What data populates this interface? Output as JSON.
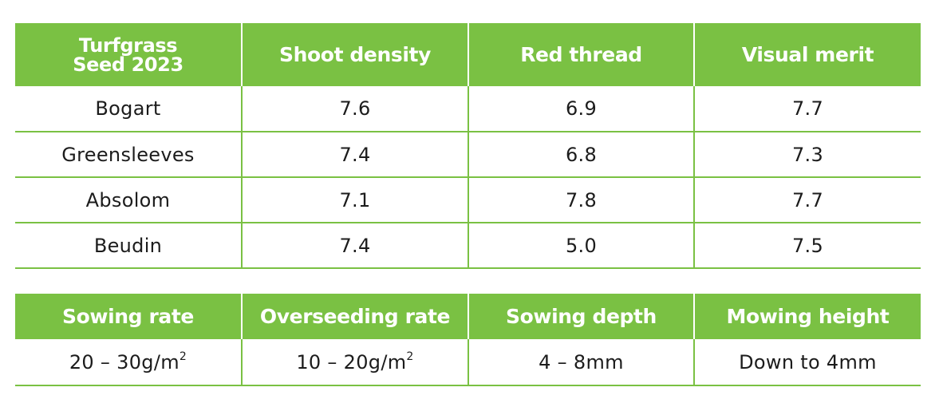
{
  "trial_table": {
    "headers": {
      "variety_line1": "Turfgrass",
      "variety_line2": "Seed 2023",
      "shoot_density": "Shoot density",
      "red_thread": "Red thread",
      "visual_merit": "Visual merit"
    },
    "rows": [
      {
        "variety": "Bogart",
        "shoot_density": "7.6",
        "red_thread": "6.9",
        "visual_merit": "7.7"
      },
      {
        "variety": "Greensleeves",
        "shoot_density": "7.4",
        "red_thread": "6.8",
        "visual_merit": "7.3"
      },
      {
        "variety": "Absolom",
        "shoot_density": "7.1",
        "red_thread": "7.8",
        "visual_merit": "7.7"
      },
      {
        "variety": "Beudin",
        "shoot_density": "7.4",
        "red_thread": "5.0",
        "visual_merit": "7.5"
      }
    ]
  },
  "sowing_table": {
    "headers": {
      "sowing_rate": "Sowing rate",
      "overseeding_rate": "Overseeding rate",
      "sowing_depth": "Sowing depth",
      "mowing_height": "Mowing height"
    },
    "values": {
      "sowing_rate": "20 – 30g/m",
      "sowing_rate_exponent": "2",
      "overseeding_rate": "10 – 20g/m",
      "overseeding_rate_exponent": "2",
      "sowing_depth": "4 – 8mm",
      "mowing_height": "Down to 4mm"
    }
  },
  "colors": {
    "header_green": "#7ac143",
    "rule_green": "#7ac143",
    "header_text": "#ffffff",
    "body_text": "#1c1c1c"
  }
}
